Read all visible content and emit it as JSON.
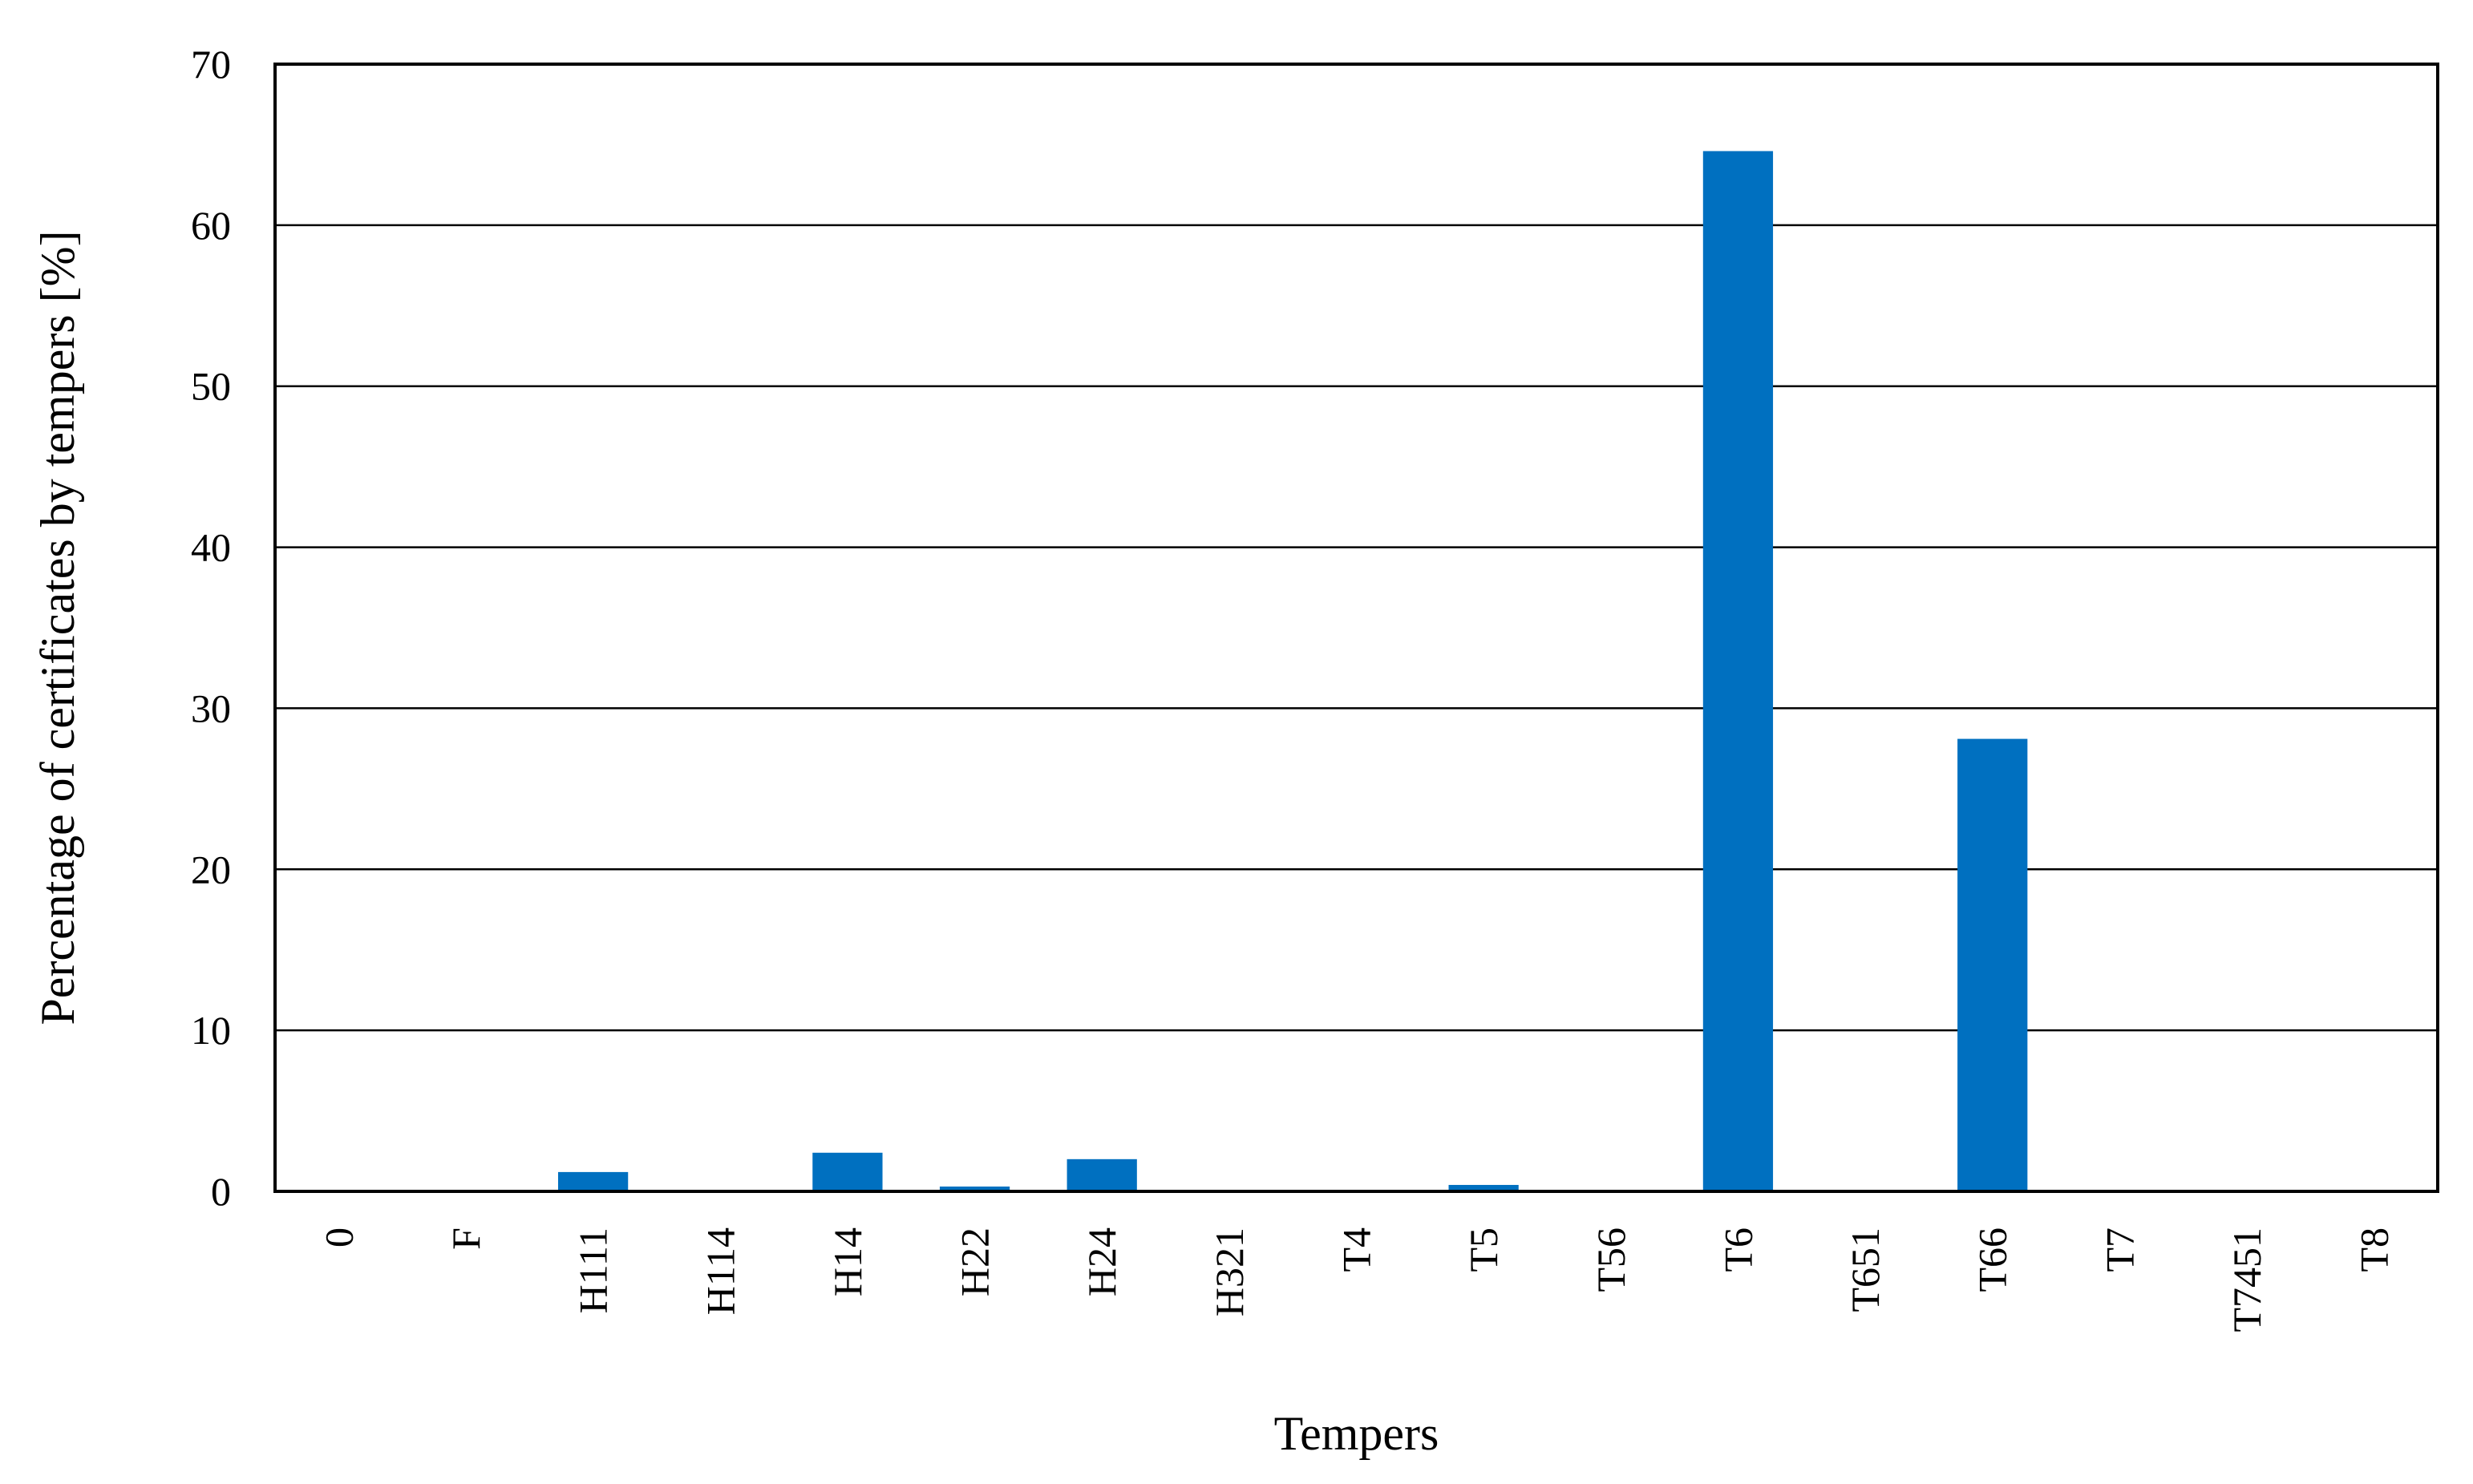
{
  "chart_data": {
    "type": "bar",
    "title": "",
    "xlabel": "Tempers",
    "ylabel": "Percentage of certificates by tempers [%]",
    "categories": [
      "0",
      "F",
      "H111",
      "H114",
      "H14",
      "H22",
      "H24",
      "H321",
      "T4",
      "T5",
      "T56",
      "T6",
      "T651",
      "T66",
      "T7",
      "T7451",
      "T8"
    ],
    "values": [
      0,
      0,
      1.2,
      0,
      2.4,
      0.3,
      2.0,
      0,
      0,
      0.4,
      0,
      64.6,
      0,
      28.1,
      0,
      0,
      0
    ],
    "ylim": [
      0,
      70
    ],
    "yticks": [
      "0",
      "10",
      "20",
      "30",
      "40",
      "50",
      "60",
      "70"
    ],
    "grid": true,
    "legend": "none",
    "bar_color": "#0070C0"
  }
}
